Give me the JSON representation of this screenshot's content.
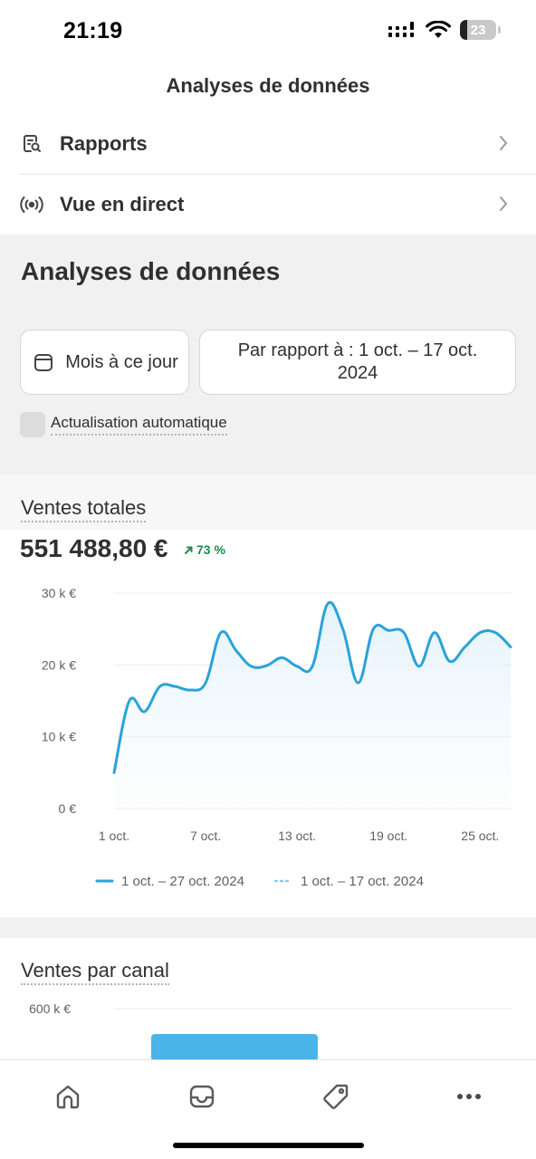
{
  "status_bar": {
    "time": "21:19",
    "battery": "23"
  },
  "nav": {
    "title": "Analyses de données"
  },
  "menu": [
    {
      "label": "Rapports",
      "icon": "report-search-icon"
    },
    {
      "label": "Vue en direct",
      "icon": "live-broadcast-icon"
    }
  ],
  "analytics": {
    "heading": "Analyses de données",
    "date_range": "Mois à ce jour",
    "comparison": "Par rapport à : 1 oct. – 17 oct. 2024",
    "auto_refresh_label": "Actualisation automatique"
  },
  "sales_card": {
    "title": "Ventes totales",
    "value": "551 488,80 €",
    "change": "73 %",
    "change_color": "#1f8a4c"
  },
  "chart_data": {
    "type": "line",
    "y_ticks": [
      "30 k €",
      "20 k €",
      "10 k €",
      "0 €"
    ],
    "x_ticks": [
      "1 oct.",
      "7 oct.",
      "13 oct.",
      "19 oct.",
      "25 oct."
    ],
    "ylim": [
      0,
      30000
    ],
    "grid": true,
    "legend_position": "bottom",
    "series": [
      {
        "name": "1 oct. – 27 oct. 2024",
        "style": "solid",
        "color": "#2aa3d8",
        "x": [
          "1 oct.",
          "2 oct.",
          "3 oct.",
          "4 oct.",
          "5 oct.",
          "6 oct.",
          "7 oct.",
          "8 oct.",
          "9 oct.",
          "10 oct.",
          "11 oct.",
          "12 oct.",
          "13 oct.",
          "14 oct.",
          "15 oct.",
          "16 oct.",
          "17 oct.",
          "18 oct.",
          "19 oct.",
          "20 oct.",
          "21 oct.",
          "22 oct.",
          "23 oct.",
          "24 oct.",
          "25 oct.",
          "26 oct.",
          "27 oct."
        ],
        "values": [
          5000,
          15000,
          13500,
          17000,
          17000,
          16500,
          17500,
          24500,
          22000,
          19800,
          19900,
          21000,
          19800,
          19800,
          28500,
          25000,
          17500,
          25000,
          24800,
          24500,
          19800,
          24500,
          20500,
          22500,
          24500,
          24500,
          22500
        ]
      },
      {
        "name": "1 oct. – 17 oct. 2024",
        "style": "dotted",
        "color": "#8cc8ea",
        "x": [],
        "values": []
      }
    ]
  },
  "channel_card": {
    "title": "Ventes par canal",
    "y_tick": "600 k €",
    "bar_color": "#4ab4e8"
  },
  "tabs": [
    {
      "icon": "home-icon"
    },
    {
      "icon": "inbox-icon"
    },
    {
      "icon": "tag-icon"
    },
    {
      "icon": "more-icon"
    }
  ]
}
